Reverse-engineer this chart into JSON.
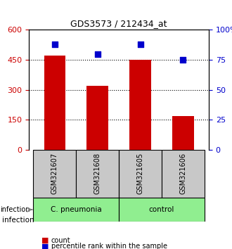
{
  "title": "GDS3573 / 212434_at",
  "samples": [
    "GSM321607",
    "GSM321608",
    "GSM321605",
    "GSM321606"
  ],
  "counts": [
    470,
    320,
    450,
    170
  ],
  "percentiles": [
    88,
    80,
    88,
    75
  ],
  "groups": [
    "C. pneumonia",
    "C. pneumonia",
    "control",
    "control"
  ],
  "group_labels": [
    "C. pneumonia",
    "control"
  ],
  "group_colors": [
    "#90EE90",
    "#90EE90"
  ],
  "bar_color": "#CC0000",
  "dot_color": "#0000CC",
  "left_yticks": [
    0,
    150,
    300,
    450,
    600
  ],
  "right_yticks": [
    0,
    25,
    50,
    75,
    100
  ],
  "ylim_left": [
    0,
    600
  ],
  "ylim_right": [
    0,
    100
  ],
  "grid_values": [
    150,
    300,
    450
  ],
  "sample_bg_color": "#C8C8C8",
  "cpneumonia_color": "#90EE90",
  "control_color": "#90EE90",
  "legend_count_label": "count",
  "legend_percentile_label": "percentile rank within the sample"
}
